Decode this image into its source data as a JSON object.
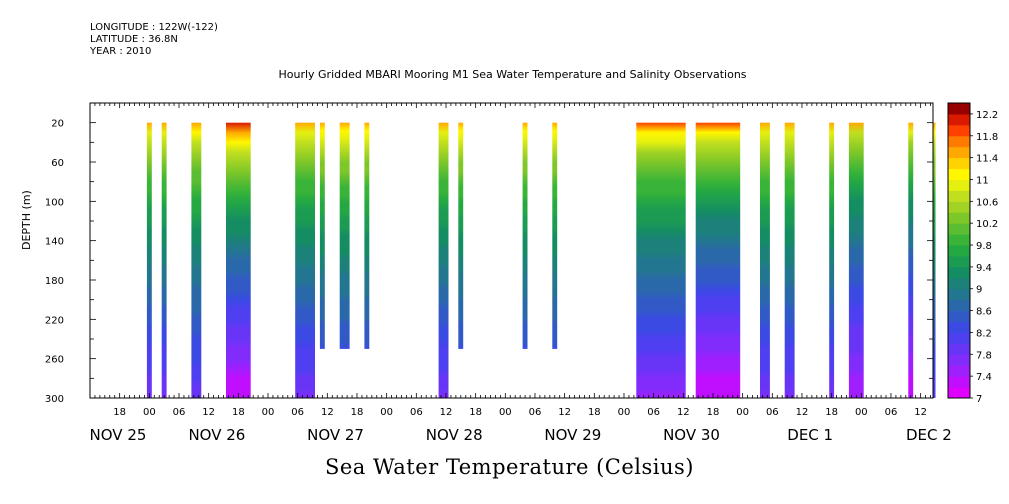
{
  "meta": {
    "longitude": "LONGITUDE : 122W(-122)",
    "latitude": "LATITUDE : 36.8N",
    "year": "YEAR : 2010"
  },
  "title": "Hourly Gridded MBARI Mooring M1 Sea Water Temperature and Salinity Observations",
  "bottom_title": "Sea Water Temperature (Celsius)",
  "chart_data": {
    "type": "heatmap",
    "title": "Hourly Gridded MBARI Mooring M1 Sea Water Temperature and Salinity Observations",
    "ylabel": "DEPTH (m)",
    "colorbar_label": "Sea Water Temperature (Celsius)",
    "y_reversed": true,
    "ylim": [
      300,
      0
    ],
    "y_ticks": [
      20,
      60,
      100,
      140,
      180,
      220,
      260,
      300
    ],
    "x_start": "NOV 25 12:00",
    "x_end": "DEC 2 14:00",
    "hour_ticks": [
      {
        "t": 6,
        "label": "18"
      },
      {
        "t": 12,
        "label": "00"
      },
      {
        "t": 18,
        "label": "06"
      },
      {
        "t": 24,
        "label": "12"
      },
      {
        "t": 30,
        "label": "18"
      },
      {
        "t": 36,
        "label": "00"
      },
      {
        "t": 42,
        "label": "06"
      },
      {
        "t": 48,
        "label": "12"
      },
      {
        "t": 54,
        "label": "18"
      },
      {
        "t": 60,
        "label": "00"
      },
      {
        "t": 66,
        "label": "06"
      },
      {
        "t": 72,
        "label": "12"
      },
      {
        "t": 78,
        "label": "18"
      },
      {
        "t": 84,
        "label": "00"
      },
      {
        "t": 90,
        "label": "06"
      },
      {
        "t": 96,
        "label": "12"
      },
      {
        "t": 102,
        "label": "18"
      },
      {
        "t": 108,
        "label": "00"
      },
      {
        "t": 114,
        "label": "06"
      },
      {
        "t": 120,
        "label": "12"
      },
      {
        "t": 126,
        "label": "18"
      },
      {
        "t": 132,
        "label": "00"
      },
      {
        "t": 138,
        "label": "06"
      },
      {
        "t": 144,
        "label": "12"
      },
      {
        "t": 150,
        "label": "18"
      },
      {
        "t": 156,
        "label": "00"
      },
      {
        "t": 162,
        "label": "06"
      },
      {
        "t": 168,
        "label": "12"
      }
    ],
    "date_labels": [
      {
        "t": 0,
        "label": "NOV 25"
      },
      {
        "t": 20,
        "label": "NOV 26"
      },
      {
        "t": 44,
        "label": "NOV 27"
      },
      {
        "t": 68,
        "label": "NOV 28"
      },
      {
        "t": 92,
        "label": "NOV 29"
      },
      {
        "t": 116,
        "label": "NOV 30"
      },
      {
        "t": 140,
        "label": "DEC  1"
      },
      {
        "t": 164,
        "label": "DEC  2"
      }
    ],
    "colorbar_levels": [
      7,
      7.2,
      7.4,
      7.6,
      7.8,
      8,
      8.2,
      8.4,
      8.6,
      8.8,
      9,
      9.2,
      9.4,
      9.6,
      9.8,
      10,
      10.2,
      10.4,
      10.6,
      10.8,
      11,
      11.2,
      11.4,
      11.6,
      11.8,
      12,
      12.2,
      12.4
    ],
    "colorbar_labels": [
      "7",
      "7.4",
      "7.8",
      "8.2",
      "8.6",
      "9",
      "9.4",
      "9.8",
      "10.2",
      "10.6",
      "11",
      "11.4",
      "11.8",
      "12.2"
    ],
    "segments": [
      {
        "start": 11.5,
        "end": 12.5,
        "max_depth": 300,
        "surface_temp": 11.6,
        "bottom_temp": 7.8
      },
      {
        "start": 14.5,
        "end": 15.5,
        "max_depth": 300,
        "surface_temp": 11.6,
        "bottom_temp": 7.8
      },
      {
        "start": 20.5,
        "end": 22.5,
        "max_depth": 300,
        "surface_temp": 11.6,
        "bottom_temp": 7.9
      },
      {
        "start": 27.5,
        "end": 32.5,
        "max_depth": 300,
        "surface_temp": 12.2,
        "bottom_temp": 7.2
      },
      {
        "start": 41.5,
        "end": 45.5,
        "max_depth": 300,
        "surface_temp": 11.6,
        "bottom_temp": 7.8
      },
      {
        "start": 46.5,
        "end": 47.5,
        "max_depth": 250,
        "surface_temp": 11.6,
        "bottom_temp": 8.0
      },
      {
        "start": 50.5,
        "end": 52.5,
        "max_depth": 250,
        "surface_temp": 11.6,
        "bottom_temp": 8.0
      },
      {
        "start": 55.5,
        "end": 56.5,
        "max_depth": 250,
        "surface_temp": 11.6,
        "bottom_temp": 8.0
      },
      {
        "start": 70.5,
        "end": 72.5,
        "max_depth": 300,
        "surface_temp": 11.6,
        "bottom_temp": 7.8
      },
      {
        "start": 74.5,
        "end": 75.5,
        "max_depth": 250,
        "surface_temp": 11.6,
        "bottom_temp": 8.0
      },
      {
        "start": 87.5,
        "end": 88.5,
        "max_depth": 250,
        "surface_temp": 11.6,
        "bottom_temp": 8.0
      },
      {
        "start": 93.5,
        "end": 94.5,
        "max_depth": 250,
        "surface_temp": 11.6,
        "bottom_temp": 8.0
      },
      {
        "start": 110.5,
        "end": 120.5,
        "max_depth": 300,
        "surface_temp": 11.8,
        "bottom_temp": 7.6
      },
      {
        "start": 122.5,
        "end": 131.5,
        "max_depth": 300,
        "surface_temp": 11.8,
        "bottom_temp": 7.2
      },
      {
        "start": 135.5,
        "end": 137.5,
        "max_depth": 300,
        "surface_temp": 11.6,
        "bottom_temp": 7.8
      },
      {
        "start": 140.5,
        "end": 142.5,
        "max_depth": 300,
        "surface_temp": 11.6,
        "bottom_temp": 7.8
      },
      {
        "start": 149.5,
        "end": 150.5,
        "max_depth": 300,
        "surface_temp": 11.6,
        "bottom_temp": 7.8
      },
      {
        "start": 153.5,
        "end": 156.5,
        "max_depth": 300,
        "surface_temp": 11.4,
        "bottom_temp": 7.4
      },
      {
        "start": 165.5,
        "end": 166.5,
        "max_depth": 300,
        "surface_temp": 11.6,
        "bottom_temp": 7.2
      },
      {
        "start": 170.5,
        "end": 171.0,
        "max_depth": 300,
        "surface_temp": 11.6,
        "bottom_temp": 8.0
      }
    ]
  }
}
